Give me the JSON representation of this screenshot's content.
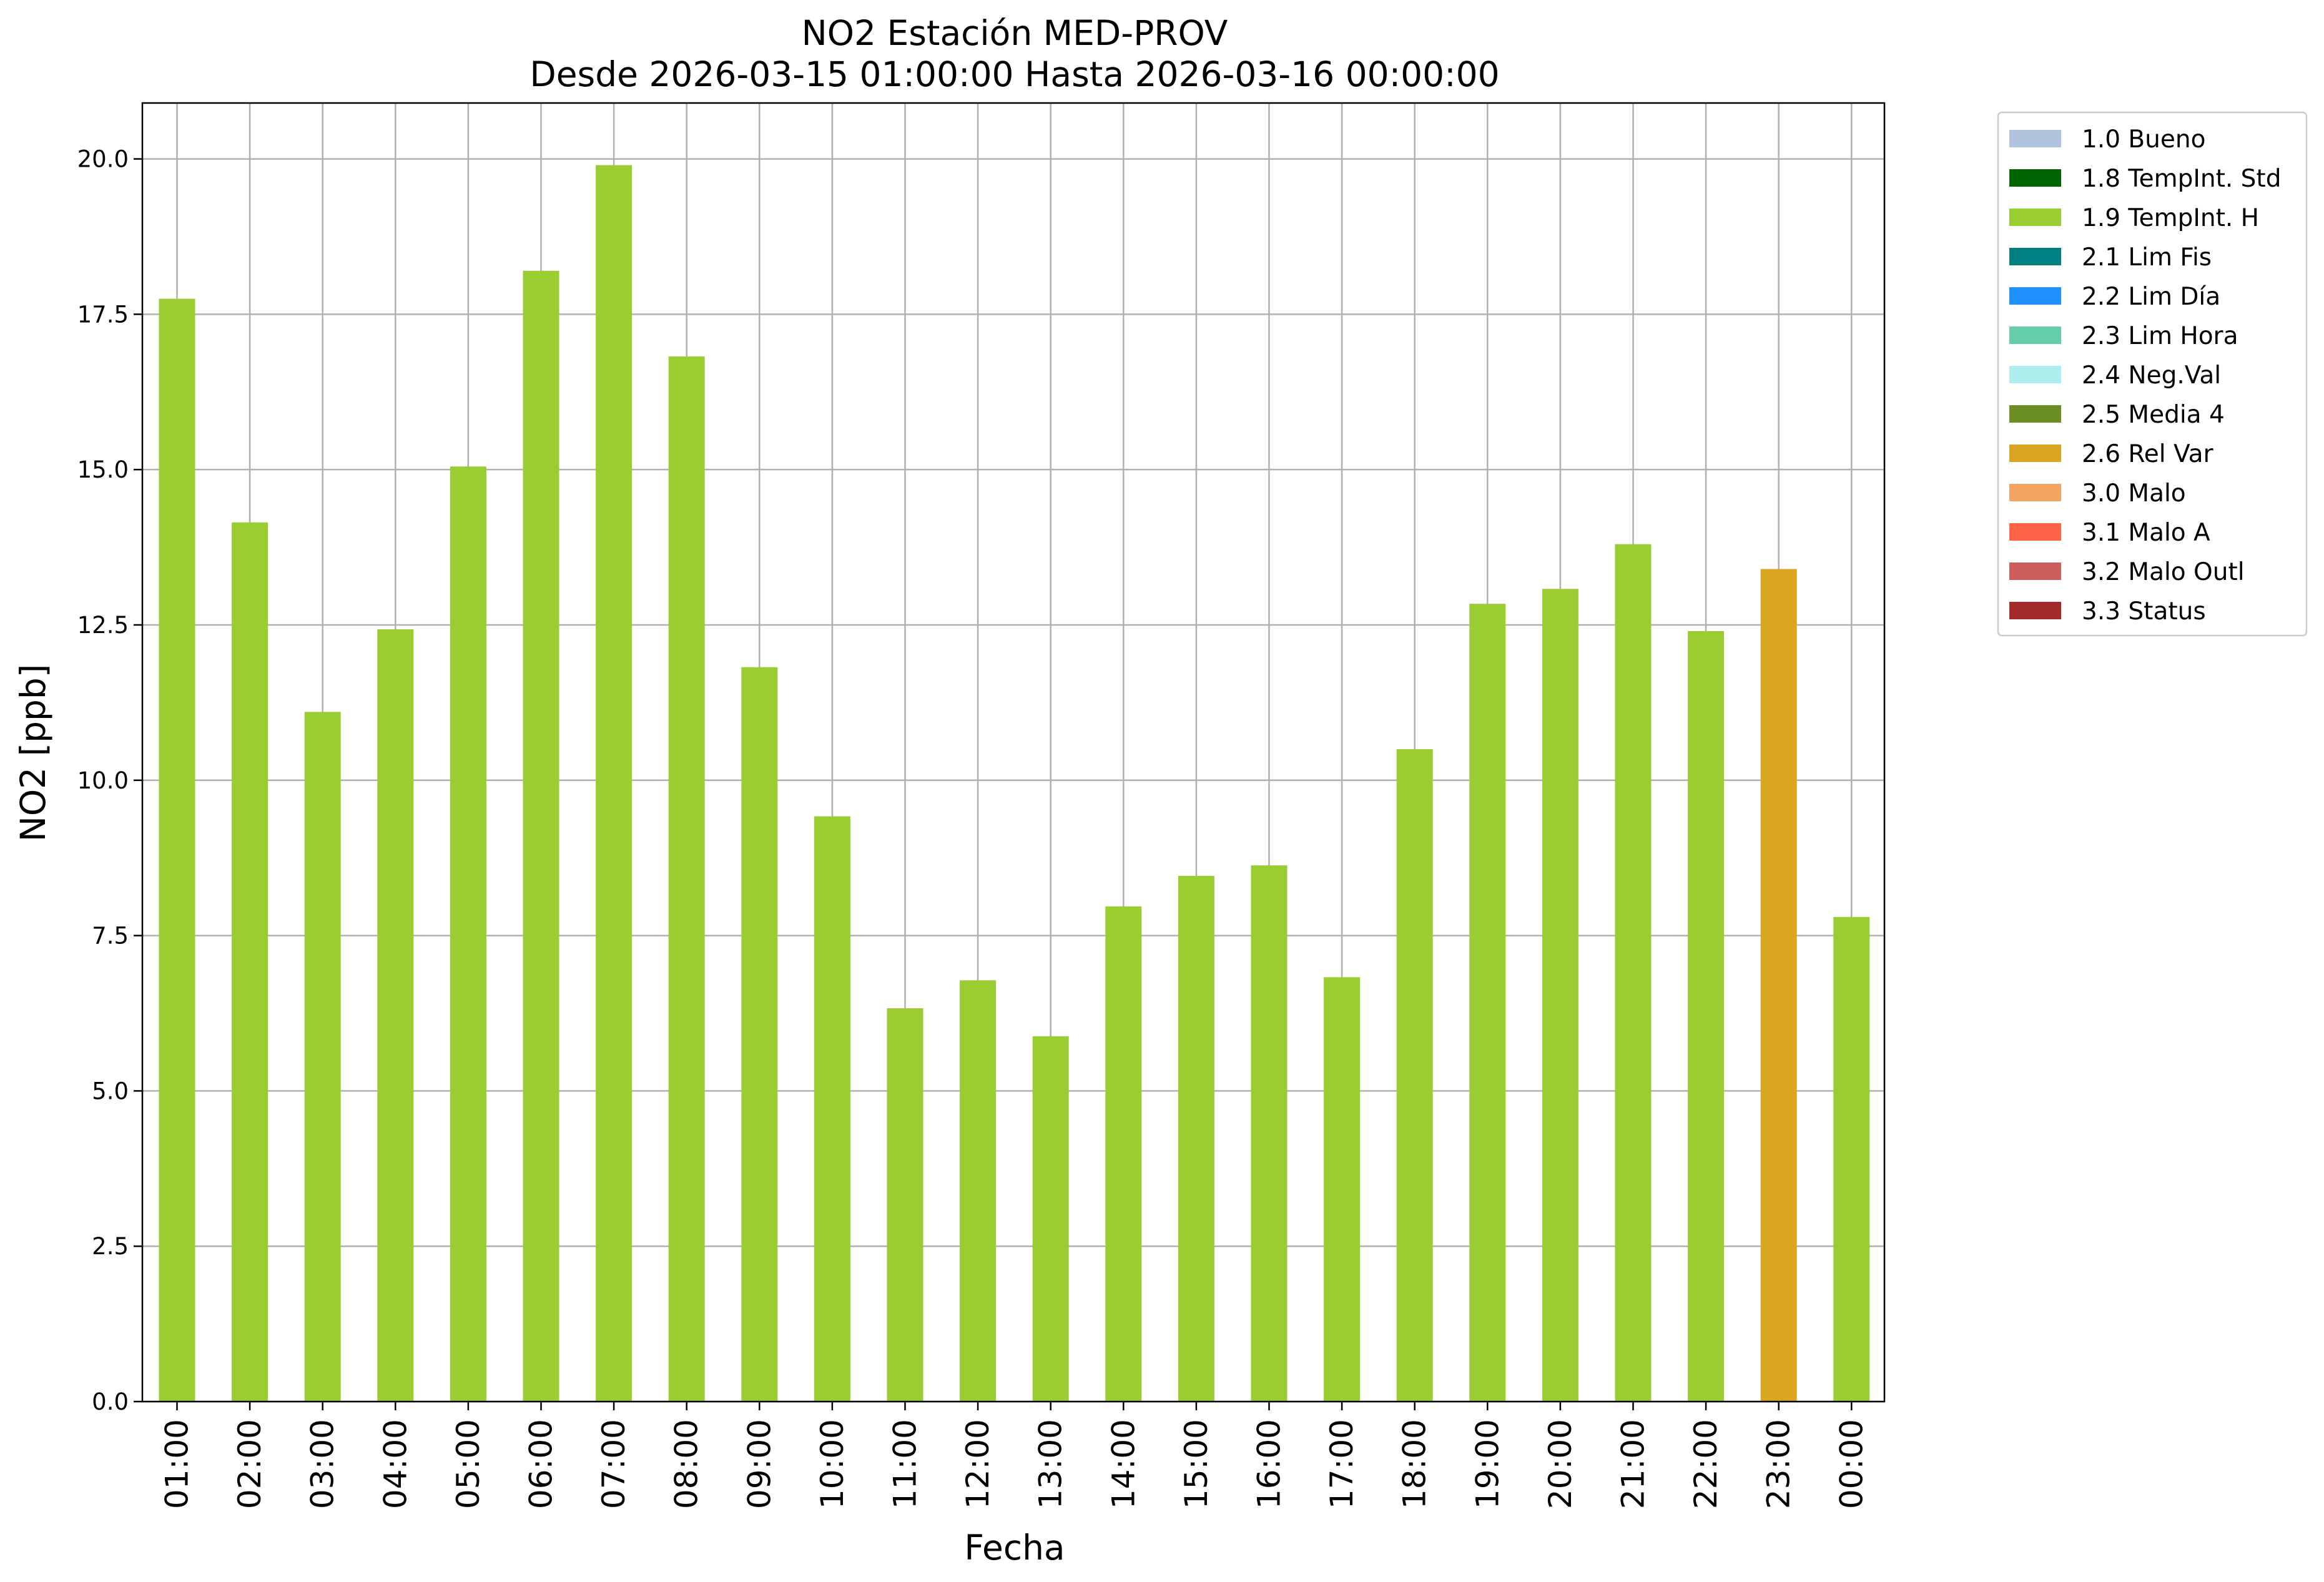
{
  "chart_data": {
    "type": "bar",
    "title": "NO2 Estación MED-PROV",
    "subtitle": "Desde 2026-03-15 01:00:00 Hasta 2026-03-16 00:00:00",
    "xlabel": "Fecha",
    "ylabel": "NO2 [ppb]",
    "ylim": [
      0,
      20.9
    ],
    "yticks": [
      "0.0",
      "2.5",
      "5.0",
      "7.5",
      "10.0",
      "12.5",
      "15.0",
      "17.5",
      "20.0"
    ],
    "grid": true,
    "legend_position": "outside-top-right",
    "categories": [
      "01:00",
      "02:00",
      "03:00",
      "04:00",
      "05:00",
      "06:00",
      "07:00",
      "08:00",
      "09:00",
      "10:00",
      "11:00",
      "12:00",
      "13:00",
      "14:00",
      "15:00",
      "16:00",
      "17:00",
      "18:00",
      "19:00",
      "20:00",
      "21:00",
      "22:00",
      "23:00",
      "00:00"
    ],
    "values": [
      17.75,
      14.15,
      11.1,
      12.43,
      15.05,
      18.2,
      19.9,
      16.82,
      11.82,
      9.42,
      6.33,
      6.78,
      5.88,
      7.97,
      8.46,
      8.63,
      6.83,
      10.5,
      12.84,
      13.08,
      13.8,
      12.4,
      13.4,
      7.8
    ],
    "flags": [
      "1.9",
      "1.9",
      "1.9",
      "1.9",
      "1.9",
      "1.9",
      "1.9",
      "1.9",
      "1.9",
      "1.9",
      "1.9",
      "1.9",
      "1.9",
      "1.9",
      "1.9",
      "1.9",
      "1.9",
      "1.9",
      "1.9",
      "1.9",
      "1.9",
      "1.9",
      "2.6",
      "1.9"
    ],
    "legend": [
      {
        "code": "1.0",
        "label": "1.0 Bueno",
        "color": "#b0c4de"
      },
      {
        "code": "1.8",
        "label": "1.8 TempInt. Std",
        "color": "#006400"
      },
      {
        "code": "1.9",
        "label": "1.9 TempInt. H",
        "color": "#9acd32"
      },
      {
        "code": "2.1",
        "label": "2.1 Lim Fis",
        "color": "#008080"
      },
      {
        "code": "2.2",
        "label": "2.2 Lim Día",
        "color": "#1e90ff"
      },
      {
        "code": "2.3",
        "label": "2.3 Lim Hora",
        "color": "#66cdaa"
      },
      {
        "code": "2.4",
        "label": "2.4 Neg.Val",
        "color": "#afeeee"
      },
      {
        "code": "2.5",
        "label": "2.5 Media 4",
        "color": "#6b8e23"
      },
      {
        "code": "2.6",
        "label": "2.6 Rel Var",
        "color": "#daa520"
      },
      {
        "code": "3.0",
        "label": "3.0 Malo",
        "color": "#f4a460"
      },
      {
        "code": "3.1",
        "label": "3.1 Malo A",
        "color": "#ff6347"
      },
      {
        "code": "3.2",
        "label": "3.2 Malo Outl",
        "color": "#cd5c5c"
      },
      {
        "code": "3.3",
        "label": "3.3 Status",
        "color": "#a52a2a"
      }
    ],
    "grid_color": "#b0b0b0"
  }
}
